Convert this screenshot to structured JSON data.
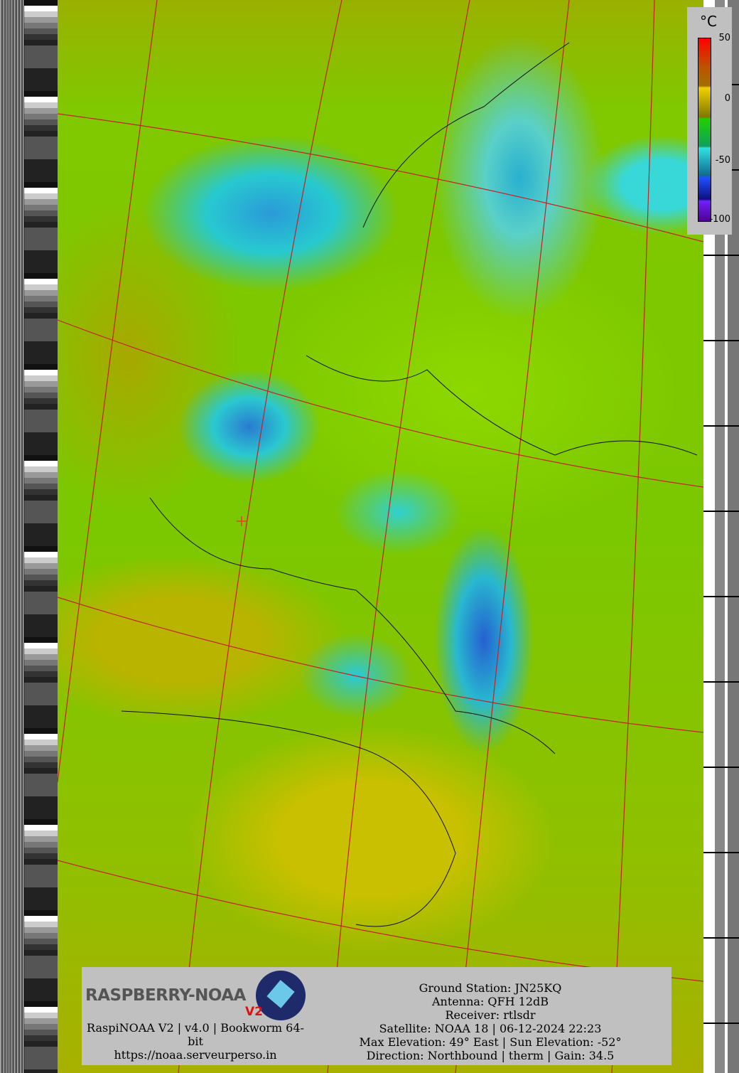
{
  "legend": {
    "unit": "°C",
    "ticks": [
      "50",
      "0",
      "-50",
      "-100"
    ],
    "colors": [
      "#ff0000",
      "#f0d000",
      "#20d000",
      "#30e0e0",
      "#2050ff",
      "#500090"
    ]
  },
  "footer": {
    "logo_text": "RASPBERRY-NOAA",
    "logo_version": "V2",
    "software_line1": "RaspiNOAA V2 | v4.0 | Bookworm 64-",
    "software_line2": "bit",
    "url": "https://noaa.serveurperso.in",
    "ground_station": "Ground Station: JN25KQ",
    "antenna": "Antenna: QFH 12dB",
    "receiver": "Receiver: rtlsdr",
    "satellite": "Satellite: NOAA 18 | 06-12-2024 22:23",
    "elevation": "Max Elevation: 49° East | Sun Elevation: -52°",
    "direction": "Direction: Northbound | therm | Gain: 34.5"
  },
  "map": {
    "graticule_color": "#d02020",
    "station_marker_color": "#ff3030"
  }
}
